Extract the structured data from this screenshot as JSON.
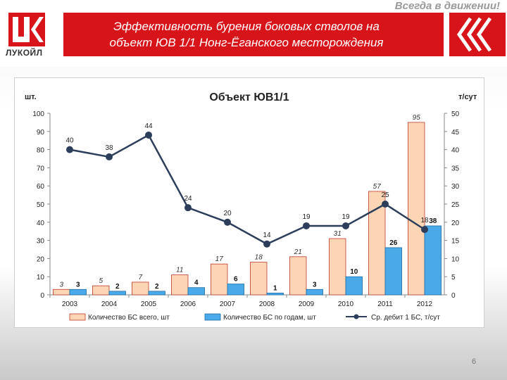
{
  "header": {
    "slogan": "Всегда в движении!",
    "logo_text": "ЛУКОЙЛ",
    "title_line1": "Эффективность бурения боковых стволов на",
    "title_line2": "объект ЮВ 1/1 Нонг-Ёганского месторождения"
  },
  "page_number": "6",
  "colors": {
    "brand_red": "#d8141b",
    "bar_total": "#fcd5b5",
    "bar_per_year": "#4aa9e8",
    "line": "#2c3e5a"
  },
  "chart_data": {
    "type": "bar",
    "title": "Объект ЮВ1/1",
    "left_axis_label": "шт.",
    "right_axis_label": "т/сут",
    "categories": [
      "2003",
      "2004",
      "2005",
      "2006",
      "2007",
      "2008",
      "2009",
      "2010",
      "2011",
      "2012"
    ],
    "left_ylim": [
      0,
      100
    ],
    "left_ticks": [
      0,
      10,
      20,
      30,
      40,
      50,
      60,
      70,
      80,
      90,
      100
    ],
    "right_ylim": [
      0,
      50
    ],
    "right_ticks": [
      0,
      5,
      10,
      15,
      20,
      25,
      30,
      35,
      40,
      45,
      50
    ],
    "grid": false,
    "legend_position": "bottom",
    "series": [
      {
        "name": "Количество БС всего, шт",
        "type": "bar",
        "axis": "left",
        "values": [
          3,
          5,
          7,
          11,
          17,
          18,
          21,
          31,
          57,
          95
        ]
      },
      {
        "name": "Количество БС по годам, шт",
        "type": "bar",
        "axis": "left",
        "values": [
          3,
          2,
          2,
          4,
          6,
          1,
          3,
          10,
          26,
          38
        ]
      },
      {
        "name": "Ср. дебит 1 БС, т/сут",
        "type": "line",
        "axis": "right",
        "values": [
          40,
          38,
          44,
          24,
          20,
          14,
          19,
          19,
          25,
          18
        ]
      }
    ]
  }
}
